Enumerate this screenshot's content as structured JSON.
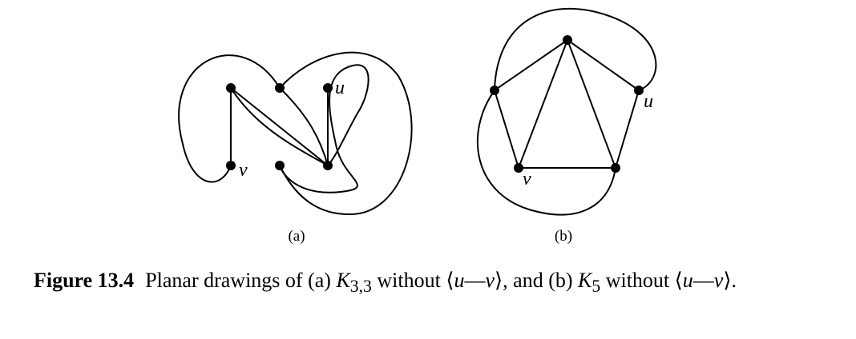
{
  "figure": {
    "number": "Figure 13.4",
    "caption_parts": {
      "p1": "Planar drawings of (a) ",
      "graph_a_letter": "K",
      "graph_a_sub": "3,3",
      "p2": " without ⟨",
      "u1": "u",
      "dash1": "—",
      "v1": "v",
      "p3": "⟩, and (b) ",
      "graph_b_letter": "K",
      "graph_b_sub": "5",
      "p4": " without ⟨",
      "u2": "u",
      "dash2": "—",
      "v2": "v",
      "p5": "⟩."
    },
    "panel_a": {
      "label": "(a)",
      "vertex_u": "u",
      "vertex_v": "v"
    },
    "panel_b": {
      "label": "(b)",
      "vertex_u": "u",
      "vertex_v": "v"
    }
  }
}
